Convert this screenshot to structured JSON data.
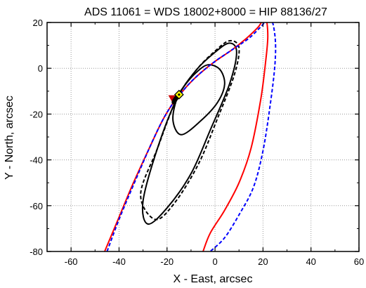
{
  "chart_data": {
    "type": "line",
    "title": "ADS 11061 = WDS 18002+8000 = HIP 88136/27",
    "xlabel": "X - East, arcsec",
    "ylabel": "Y - North, arcsec",
    "xlim": [
      -70,
      60
    ],
    "ylim": [
      -80,
      20
    ],
    "x_ticks": [
      -60,
      -40,
      -20,
      0,
      20,
      40,
      60
    ],
    "y_ticks": [
      20,
      0,
      -20,
      -40,
      -60,
      -80
    ],
    "grid": true,
    "legend": "none",
    "series": [
      {
        "style": "solid",
        "color": "#000000",
        "x": [
          -16,
          -13,
          -8,
          -3,
          2,
          4,
          1,
          -6,
          -14,
          -17.5,
          -16
        ],
        "y": [
          -13.5,
          -8,
          -2,
          1.5,
          -0.5,
          -7,
          -15,
          -23,
          -29,
          -23,
          -13.5
        ]
      },
      {
        "style": "solid",
        "color": "#000000",
        "x": [
          -16,
          -8,
          0,
          6,
          9,
          6,
          -2,
          -10,
          -20,
          -28,
          -30,
          -24,
          -16
        ],
        "y": [
          -13.5,
          -1,
          7,
          11,
          7,
          -7,
          -27,
          -46,
          -61,
          -68,
          -58,
          -35,
          -13.5
        ]
      },
      {
        "style": "dashed",
        "color": "#000000",
        "x": [
          -16,
          -8,
          0,
          6,
          10,
          8,
          1,
          -7,
          -17,
          -25,
          -31,
          -24,
          -16
        ],
        "y": [
          -13.5,
          -1,
          7.5,
          12,
          9,
          -3,
          -22,
          -42,
          -59,
          -66,
          -55,
          -35,
          -13.5
        ]
      },
      {
        "style": "solid",
        "color": "#ff0000",
        "x": [
          -46,
          -40,
          -34,
          -27,
          -22,
          -18,
          -15,
          -11,
          -6,
          0,
          7,
          13,
          18,
          21,
          22,
          21,
          19,
          15,
          10,
          4,
          -2,
          -5
        ],
        "y": [
          -80,
          -65,
          -50,
          -34,
          -23,
          -16,
          -12,
          -7,
          -2,
          3,
          8,
          13,
          18,
          22,
          14,
          2,
          -14,
          -35,
          -50,
          -62,
          -72,
          -80
        ]
      },
      {
        "style": "dashed",
        "color": "#0000ff",
        "x": [
          -45,
          -40,
          -34,
          -27,
          -22,
          -18,
          -15,
          -11,
          -6,
          0,
          7,
          14,
          19,
          23,
          25,
          25,
          23,
          20,
          16,
          10,
          4,
          -2
        ],
        "y": [
          -80,
          -66,
          -51,
          -34,
          -23,
          -16,
          -12,
          -7,
          -2,
          3,
          8,
          13,
          18,
          22,
          14,
          2,
          -16,
          -36,
          -52,
          -64,
          -74,
          -80
        ]
      }
    ],
    "markers": [
      {
        "shape": "triangle",
        "color": "#cc0000",
        "x": -18,
        "y": -13
      },
      {
        "shape": "circle",
        "color": "#000000",
        "x": -15.8,
        "y": -12.5
      },
      {
        "shape": "circle",
        "color": "#000000",
        "x": -16.3,
        "y": -13.2
      },
      {
        "shape": "circle",
        "color": "#000000",
        "x": -15.2,
        "y": -12
      },
      {
        "shape": "circle",
        "color": "#000000",
        "x": -16.8,
        "y": -14
      },
      {
        "shape": "circle",
        "color": "#000000",
        "x": -14.8,
        "y": -11.2
      },
      {
        "shape": "circle",
        "color": "#000000",
        "x": -17.1,
        "y": -14.8
      },
      {
        "shape": "diamond",
        "color": "#ffff00",
        "x": -15,
        "y": -11.5
      }
    ]
  }
}
